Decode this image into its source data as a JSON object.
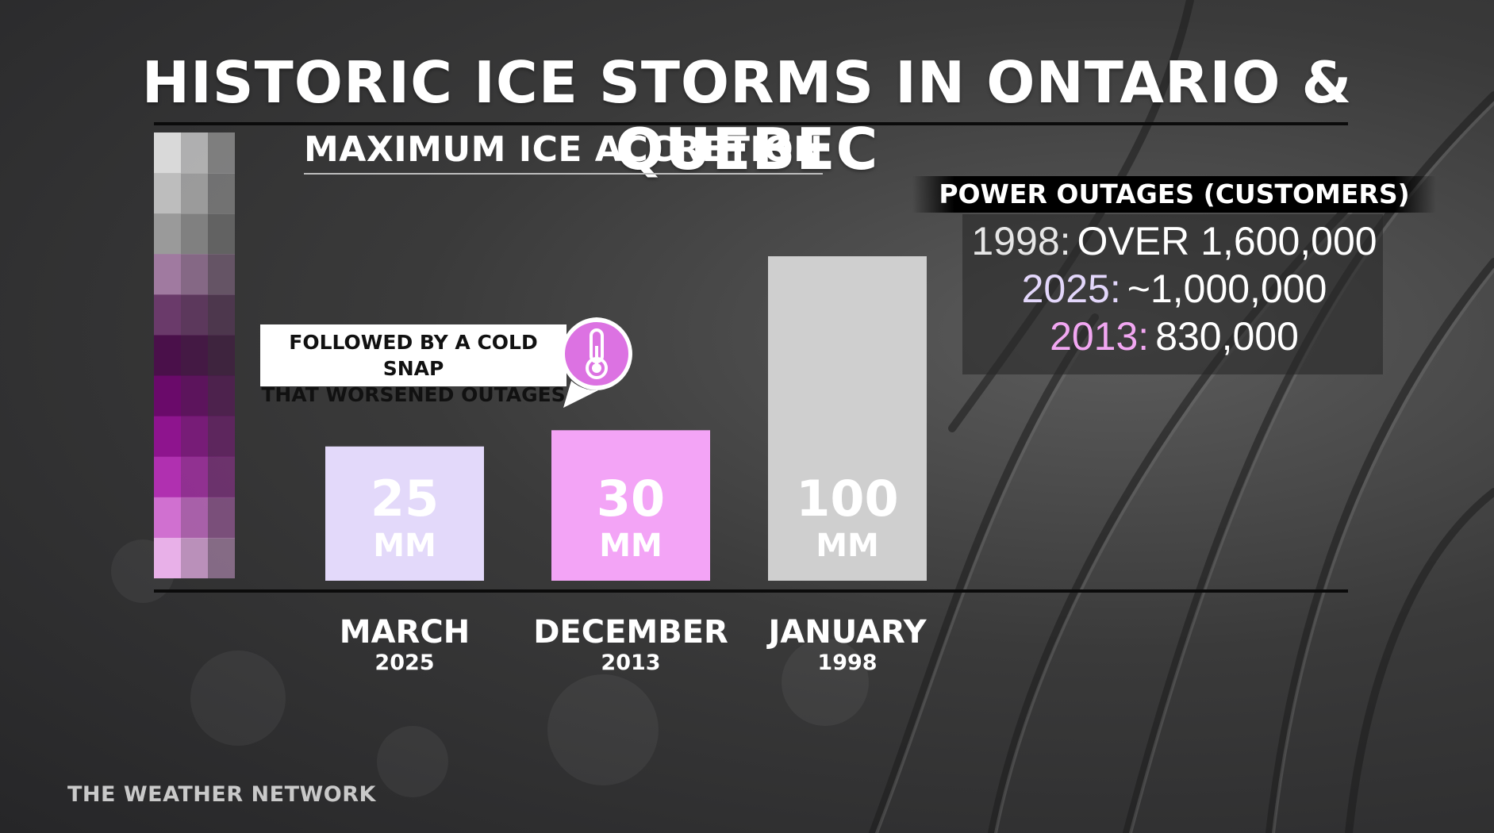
{
  "title": "HISTORIC ICE STORMS IN ONTARIO & QUEBEC",
  "subtitle": "MAXIMUM ICE ACCRETION",
  "callout": {
    "line1": "FOLLOWED BY A COLD SNAP",
    "line2": "THAT WORSENED OUTAGES",
    "icon": "thermometer-icon"
  },
  "outages": {
    "header": "POWER OUTAGES (CUSTOMERS)",
    "rows": [
      {
        "year": "1998:",
        "value": "OVER 1,600,000",
        "year_color": "#e6e6e6"
      },
      {
        "year": "2025:",
        "value": "~1,000,000",
        "year_color": "#e3d7fb"
      },
      {
        "year": "2013:",
        "value": "830,000",
        "year_color": "#f2a7f2"
      }
    ]
  },
  "brand": "THE WEATHER NETWORK",
  "colors": {
    "bar_2025": "#e3d9fa",
    "bar_2013": "#f3a4f6",
    "bar_1998": "#cfcfcf",
    "legend": [
      "#d9d9d9",
      "#bdbdbd",
      "#9a9a9a",
      "#a07aa0",
      "#6a3a6a",
      "#4a104a",
      "#6a0a6a",
      "#8e148e",
      "#b030b0",
      "#d070d0",
      "#e8b0e8"
    ]
  },
  "chart_data": {
    "type": "bar",
    "title": "MAXIMUM ICE ACCRETION",
    "categories": [
      "MARCH",
      "DECEMBER",
      "JANUARY"
    ],
    "years": [
      "2025",
      "2013",
      "1998"
    ],
    "values": [
      25,
      30,
      100
    ],
    "value_labels": [
      "25",
      "30",
      "100"
    ],
    "unit": "MM",
    "ylabel": "",
    "xlabel": "",
    "ylim": [
      0,
      110
    ]
  }
}
